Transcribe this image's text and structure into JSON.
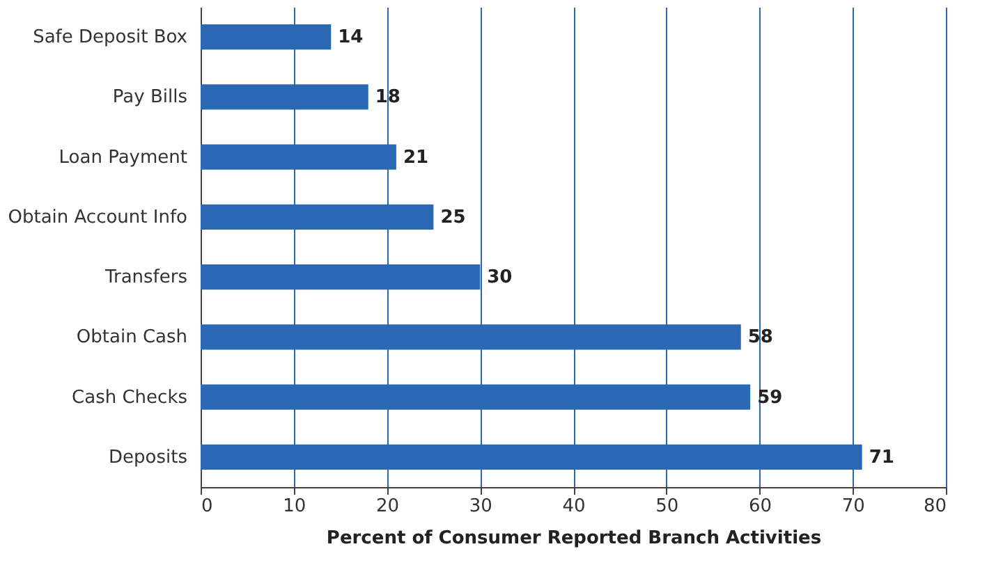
{
  "chart_data": {
    "type": "bar",
    "orientation": "horizontal",
    "xlabel": "Percent of Consumer Reported Branch Activities",
    "categories": [
      "Safe Deposit Box",
      "Pay Bills",
      "Loan Payment",
      "Obtain Account Info",
      "Transfers",
      "Obtain Cash",
      "Cash Checks",
      "Deposits"
    ],
    "values": [
      14,
      18,
      21,
      25,
      30,
      58,
      59,
      71
    ],
    "color": "#2b68b3",
    "xlim": [
      0,
      80
    ],
    "xticks": [
      0,
      10,
      20,
      30,
      40,
      50,
      60,
      70,
      80
    ],
    "grid": "x",
    "data_labels": true
  }
}
